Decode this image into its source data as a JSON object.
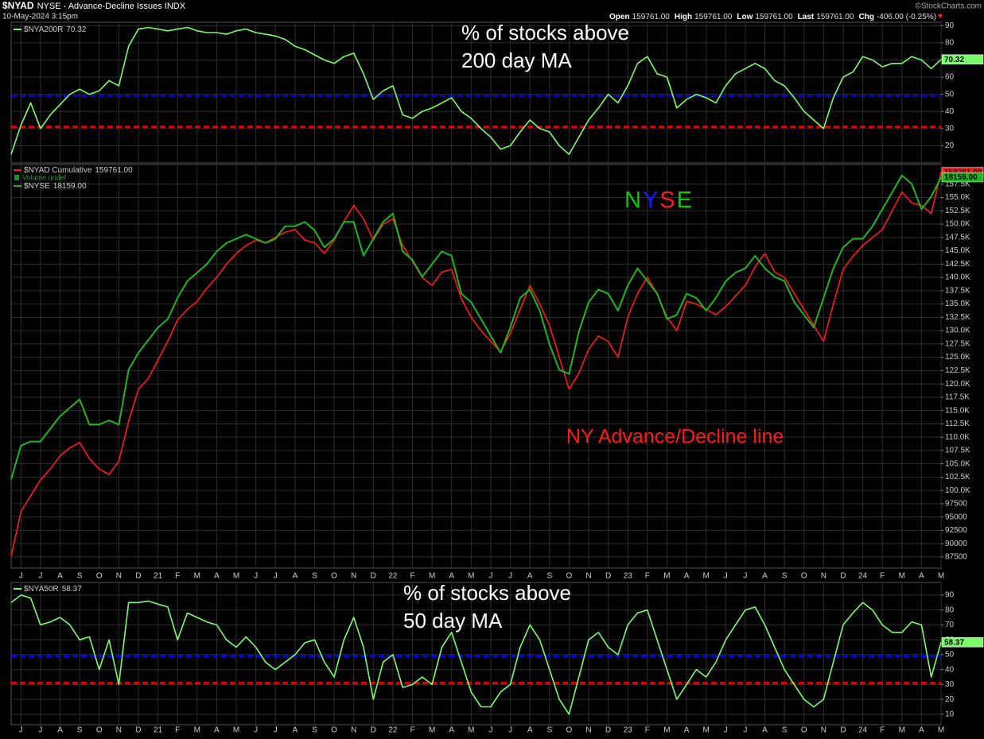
{
  "header": {
    "symbol": "$NYAD",
    "description": "NYSE - Advance-Decline Issues INDX",
    "date": "10-May-2024 3:15pm",
    "source": "©StockCharts.com",
    "quote": [
      {
        "label": "Open",
        "value": "159761.00"
      },
      {
        "label": "High",
        "value": "159761.00"
      },
      {
        "label": "Low",
        "value": "159761.00"
      },
      {
        "label": "Last",
        "value": "159761.00"
      },
      {
        "label": "Chg",
        "value": "-406.00 (-0.25%)"
      }
    ]
  },
  "chart_data": [
    {
      "type": "line",
      "series": [
        {
          "name": "$NYA200R",
          "color": "#7dfc6b",
          "last_value_label": "70.32",
          "values": [
            15,
            32,
            45,
            30,
            38,
            44,
            50,
            53,
            50,
            52,
            58,
            55,
            78,
            88,
            89,
            88,
            87,
            88,
            89,
            87,
            86,
            86,
            85,
            87,
            88,
            86,
            85,
            84,
            82,
            78,
            76,
            73,
            70,
            68,
            72,
            74,
            62,
            47,
            52,
            55,
            38,
            36,
            40,
            42,
            45,
            48,
            40,
            36,
            30,
            25,
            18,
            20,
            28,
            35,
            30,
            28,
            20,
            15,
            25,
            35,
            42,
            50,
            45,
            55,
            68,
            72,
            62,
            60,
            42,
            47,
            50,
            48,
            45,
            55,
            62,
            65,
            68,
            65,
            58,
            55,
            48,
            40,
            35,
            30,
            48,
            60,
            63,
            72,
            70,
            66,
            68,
            68,
            72,
            70,
            65,
            70.32
          ]
        }
      ],
      "ylim": [
        10,
        92
      ],
      "yticks": [
        20,
        30,
        40,
        50,
        60,
        70,
        80,
        90
      ],
      "grid": true,
      "reference_lines": [
        {
          "value": 49,
          "color": "#0000ff"
        },
        {
          "value": 31,
          "color": "#ff0000"
        }
      ],
      "annotations": [
        {
          "lines": [
            "% of stocks above",
            "200 day MA"
          ],
          "color": "#ffffff"
        }
      ]
    },
    {
      "type": "line",
      "categories": [
        null,
        "J",
        null,
        "J",
        null,
        "A",
        null,
        "S",
        null,
        "O",
        null,
        "N",
        null,
        "D",
        null,
        "21",
        null,
        "F",
        null,
        "M",
        null,
        "A",
        null,
        "M",
        null,
        "J",
        null,
        "J",
        null,
        "A",
        null,
        "S",
        null,
        "O",
        null,
        "N",
        null,
        "D",
        null,
        "22",
        null,
        "F",
        null,
        "M",
        null,
        "A",
        null,
        "M",
        null,
        "J",
        null,
        "J",
        null,
        "A",
        null,
        "S",
        null,
        "O",
        null,
        "N",
        null,
        "D",
        null,
        "23",
        null,
        "F",
        null,
        "M",
        null,
        "A",
        null,
        "M",
        null,
        "J",
        null,
        "J",
        null,
        "A",
        null,
        "S",
        null,
        "O",
        null,
        "N",
        null,
        "D",
        null,
        "24",
        null,
        "F",
        null,
        "M",
        null,
        "A",
        null,
        "M"
      ],
      "series": [
        {
          "name": "$NYAD Cumulative",
          "color": "#ff1a1a",
          "last_value_label": "159761.00",
          "values": [
            87600,
            96000,
            99000,
            102000,
            104000,
            106500,
            108000,
            109000,
            106000,
            104000,
            103000,
            105500,
            113000,
            119000,
            121000,
            124500,
            128000,
            132000,
            134000,
            135500,
            138000,
            140000,
            142500,
            144500,
            146000,
            147000,
            146500,
            147500,
            148500,
            149000,
            147000,
            146500,
            144500,
            147000,
            150500,
            153500,
            151000,
            147000,
            150000,
            151000,
            146000,
            143000,
            140000,
            138500,
            141000,
            141500,
            136000,
            132500,
            130000,
            128000,
            126000,
            129500,
            134000,
            138500,
            135000,
            131000,
            125000,
            119000,
            122000,
            126500,
            129000,
            128000,
            125000,
            132500,
            137000,
            140000,
            137000,
            132500,
            130000,
            135500,
            135000,
            134000,
            133000,
            134500,
            136500,
            138500,
            142000,
            144500,
            141000,
            140000,
            137000,
            134000,
            131000,
            128000,
            135000,
            141500,
            144000,
            146000,
            147500,
            149000,
            152500,
            156000,
            154000,
            153500,
            152000,
            159761
          ]
        },
        {
          "name": "$NYSE",
          "color": "#22b422",
          "axis": "y2",
          "last_value_label": "18159.00",
          "values": [
            11000,
            11800,
            11900,
            11900,
            12200,
            12500,
            12700,
            12900,
            12300,
            12300,
            12400,
            12300,
            13600,
            14000,
            14300,
            14600,
            14800,
            15300,
            15700,
            15900,
            16100,
            16400,
            16600,
            16700,
            16800,
            16700,
            16600,
            16700,
            17000,
            17000,
            17100,
            16900,
            16500,
            16700,
            17100,
            17100,
            16300,
            16700,
            17100,
            17300,
            16400,
            16200,
            15800,
            16100,
            16400,
            16300,
            15400,
            15200,
            14800,
            14400,
            14000,
            14600,
            15300,
            15500,
            15000,
            14200,
            13600,
            13500,
            14500,
            15200,
            15500,
            15400,
            15000,
            15600,
            16000,
            15700,
            15400,
            14800,
            14900,
            15400,
            15300,
            15000,
            15300,
            15700,
            15900,
            16000,
            16300,
            16000,
            15800,
            15700,
            15200,
            14900,
            14600,
            15300,
            16000,
            16500,
            16700,
            16700,
            17000,
            17400,
            17800,
            18200,
            18000,
            17400,
            17700,
            18159
          ]
        }
      ],
      "volume_label": "Volume undef",
      "ylim": [
        85400,
        161200
      ],
      "yticks": [
        87500,
        90000,
        92500,
        95000,
        97500,
        {
          "value": 100000,
          "label": "100.0K"
        },
        {
          "value": 102500,
          "label": "102.5K"
        },
        {
          "value": 105000,
          "label": "105.0K"
        },
        {
          "value": 107500,
          "label": "107.5K"
        },
        {
          "value": 110000,
          "label": "110.0K"
        },
        {
          "value": 112500,
          "label": "112.5K"
        },
        {
          "value": 115000,
          "label": "115.0K"
        },
        {
          "value": 117500,
          "label": "117.5K"
        },
        {
          "value": 120000,
          "label": "120.0K"
        },
        {
          "value": 122500,
          "label": "122.5K"
        },
        {
          "value": 125000,
          "label": "125.0K"
        },
        {
          "value": 127500,
          "label": "127.5K"
        },
        {
          "value": 130000,
          "label": "130.0K"
        },
        {
          "value": 132500,
          "label": "132.5K"
        },
        {
          "value": 135000,
          "label": "135.0K"
        },
        {
          "value": 137500,
          "label": "137.5K"
        },
        {
          "value": 140000,
          "label": "140.0K"
        },
        {
          "value": 142500,
          "label": "142.5K"
        },
        {
          "value": 145000,
          "label": "145.0K"
        },
        {
          "value": 147500,
          "label": "147.5K"
        },
        {
          "value": 150000,
          "label": "150.0K"
        },
        {
          "value": 152500,
          "label": "152.5K"
        },
        {
          "value": 155000,
          "label": "155.0K"
        },
        {
          "value": 157500,
          "label": "157.5K"
        }
      ],
      "y2lim": [
        8900,
        18460
      ],
      "grid": true,
      "annotations": [
        {
          "parts": [
            {
              "text": "N",
              "color": "#00d000"
            },
            {
              "text": "Y",
              "color": "#1a1aff"
            },
            {
              "text": "S",
              "color": "#ff1a1a"
            },
            {
              "text": "E",
              "color": "#00d000"
            }
          ]
        },
        {
          "lines": [
            "NY Advance/Decline line"
          ],
          "color": "#ff1a1a"
        }
      ]
    },
    {
      "type": "line",
      "categories": [
        null,
        "J",
        null,
        "J",
        null,
        "A",
        null,
        "S",
        null,
        "O",
        null,
        "N",
        null,
        "D",
        null,
        "21",
        null,
        "F",
        null,
        "M",
        null,
        "A",
        null,
        "M",
        null,
        "J",
        null,
        "J",
        null,
        "A",
        null,
        "S",
        null,
        "O",
        null,
        "N",
        null,
        "D",
        null,
        "22",
        null,
        "F",
        null,
        "M",
        null,
        "A",
        null,
        "M",
        null,
        "J",
        null,
        "J",
        null,
        "A",
        null,
        "S",
        null,
        "O",
        null,
        "N",
        null,
        "D",
        null,
        "23",
        null,
        "F",
        null,
        "M",
        null,
        "A",
        null,
        "M",
        null,
        "J",
        null,
        "J",
        null,
        "A",
        null,
        "S",
        null,
        "O",
        null,
        "N",
        null,
        "D",
        null,
        "24",
        null,
        "F",
        null,
        "M",
        null,
        "A",
        null,
        "M"
      ],
      "series": [
        {
          "name": "$NYA50R",
          "color": "#7dfc6b",
          "last_value_label": "58.37",
          "values": [
            85,
            90,
            88,
            70,
            72,
            75,
            70,
            60,
            62,
            40,
            60,
            30,
            85,
            85,
            86,
            84,
            82,
            60,
            78,
            75,
            72,
            70,
            60,
            55,
            62,
            55,
            45,
            40,
            45,
            50,
            58,
            60,
            45,
            35,
            60,
            75,
            55,
            20,
            45,
            50,
            28,
            30,
            35,
            30,
            55,
            65,
            45,
            25,
            15,
            15,
            25,
            30,
            55,
            70,
            60,
            40,
            20,
            10,
            35,
            60,
            65,
            55,
            50,
            70,
            78,
            80,
            60,
            40,
            20,
            30,
            40,
            35,
            45,
            60,
            70,
            80,
            82,
            70,
            55,
            40,
            30,
            20,
            15,
            20,
            45,
            70,
            78,
            85,
            80,
            70,
            65,
            65,
            72,
            70,
            35,
            58.37
          ]
        }
      ],
      "ylim": [
        3,
        98.5
      ],
      "yticks": [
        10,
        20,
        30,
        40,
        50,
        60,
        70,
        80,
        90
      ],
      "grid": true,
      "reference_lines": [
        {
          "value": 49,
          "color": "#0000ff"
        },
        {
          "value": 31,
          "color": "#ff0000"
        }
      ],
      "annotations": [
        {
          "lines": [
            "% of stocks above",
            "50 day MA"
          ],
          "color": "#ffffff"
        }
      ]
    }
  ]
}
